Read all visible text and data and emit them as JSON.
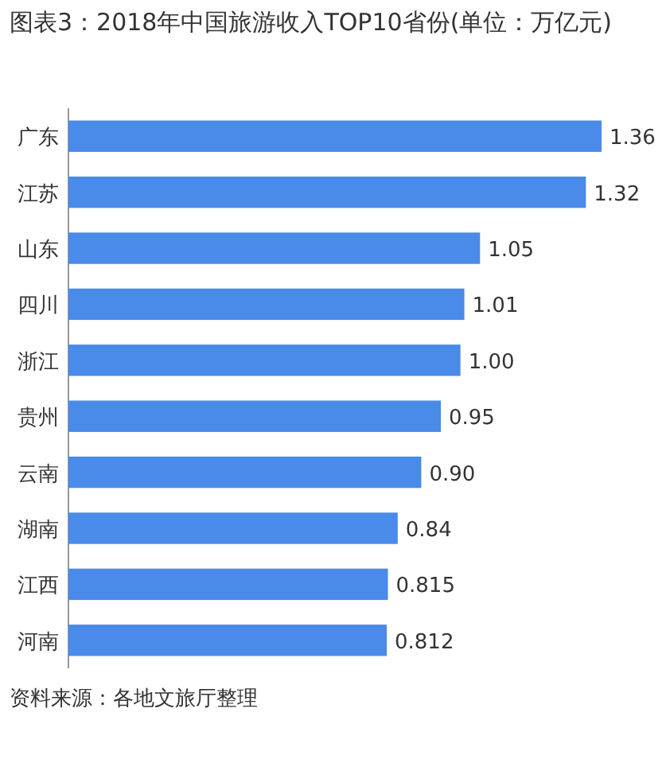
{
  "chart_data": {
    "type": "bar",
    "orientation": "horizontal",
    "title": "图表3：2018年中国旅游收入TOP10省份(单位：万亿元)",
    "categories": [
      "广东",
      "江苏",
      "山东",
      "四川",
      "浙江",
      "贵州",
      "云南",
      "湖南",
      "江西",
      "河南"
    ],
    "values": [
      1.36,
      1.32,
      1.05,
      1.01,
      1.0,
      0.95,
      0.9,
      0.84,
      0.815,
      0.812
    ],
    "value_labels": [
      "1.36",
      "1.32",
      "1.05",
      "1.01",
      "1.00",
      "0.95",
      "0.90",
      "0.84",
      "0.815",
      "0.812"
    ],
    "color": "#4a8ae8",
    "annotations": [
      "资料来源：各地文旅厅整理"
    ]
  }
}
